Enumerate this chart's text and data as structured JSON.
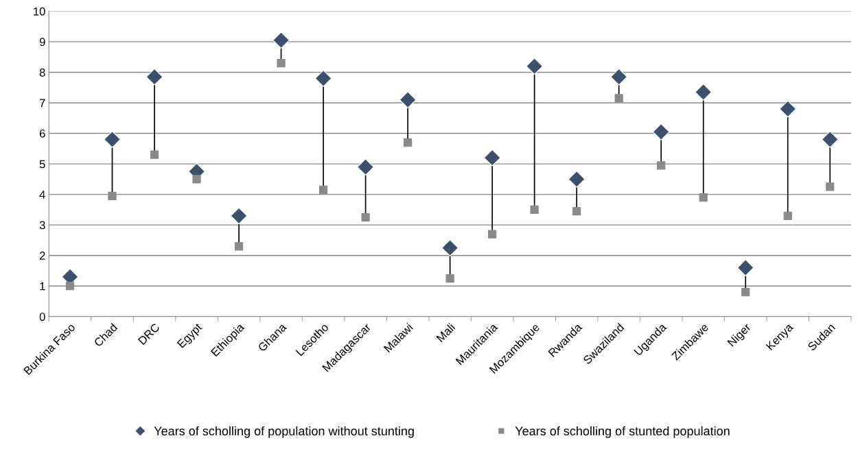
{
  "chart_data": {
    "type": "scatter",
    "categories": [
      "Burkina Faso",
      "Chad",
      "DRC",
      "Egypt",
      "Ethiopia",
      "Ghana",
      "Lesotho",
      "Madagascar",
      "Malawi",
      "Mali",
      "Mauritania",
      "Mozambique",
      "Rwanda",
      "Swaziland",
      "Uganda",
      "Zimbawe",
      "Niger",
      "Kenya",
      "Sudan"
    ],
    "series": [
      {
        "name": "Years of scholling of population without stunting",
        "color": "#3d4f6b",
        "marker": "diamond",
        "values": [
          1.3,
          5.8,
          7.85,
          4.75,
          3.3,
          9.05,
          7.8,
          4.9,
          7.1,
          2.25,
          5.2,
          8.2,
          4.5,
          7.85,
          6.05,
          7.35,
          1.6,
          6.8,
          5.8
        ]
      },
      {
        "name": "Years of scholling of stunted population",
        "color": "#8a8a8a",
        "marker": "square",
        "values": [
          1.0,
          3.95,
          5.3,
          4.5,
          2.3,
          8.3,
          4.15,
          3.25,
          5.7,
          1.25,
          2.7,
          3.5,
          3.45,
          7.15,
          4.95,
          3.9,
          0.8,
          3.3,
          4.25
        ]
      }
    ],
    "ylim": [
      0,
      10
    ],
    "yticks": [
      0,
      1,
      2,
      3,
      4,
      5,
      6,
      7,
      8,
      9,
      10
    ],
    "grid": "y",
    "legend": "bottom"
  }
}
